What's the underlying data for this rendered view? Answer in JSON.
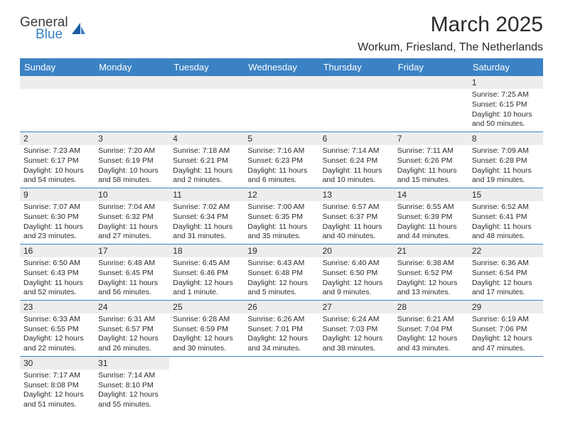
{
  "logo": {
    "text1": "General",
    "text2": "Blue",
    "shape_color": "#1e5fa3"
  },
  "title": "March 2025",
  "location": "Workum, Friesland, The Netherlands",
  "columns": [
    "Sunday",
    "Monday",
    "Tuesday",
    "Wednesday",
    "Thursday",
    "Friday",
    "Saturday"
  ],
  "header_bg": "#3b82c4",
  "header_fg": "#ffffff",
  "daynum_bg": "#ededed",
  "border_color": "#3b82c4",
  "text_color": "#2b2b2b",
  "font_family": "Arial",
  "cell_font_size_pt": 8,
  "header_font_size_pt": 10,
  "title_font_size_pt": 22,
  "weeks": [
    [
      null,
      null,
      null,
      null,
      null,
      null,
      {
        "n": "1",
        "sunrise": "7:25 AM",
        "sunset": "6:15 PM",
        "daylight": "10 hours and 50 minutes."
      }
    ],
    [
      {
        "n": "2",
        "sunrise": "7:23 AM",
        "sunset": "6:17 PM",
        "daylight": "10 hours and 54 minutes."
      },
      {
        "n": "3",
        "sunrise": "7:20 AM",
        "sunset": "6:19 PM",
        "daylight": "10 hours and 58 minutes."
      },
      {
        "n": "4",
        "sunrise": "7:18 AM",
        "sunset": "6:21 PM",
        "daylight": "11 hours and 2 minutes."
      },
      {
        "n": "5",
        "sunrise": "7:16 AM",
        "sunset": "6:23 PM",
        "daylight": "11 hours and 6 minutes."
      },
      {
        "n": "6",
        "sunrise": "7:14 AM",
        "sunset": "6:24 PM",
        "daylight": "11 hours and 10 minutes."
      },
      {
        "n": "7",
        "sunrise": "7:11 AM",
        "sunset": "6:26 PM",
        "daylight": "11 hours and 15 minutes."
      },
      {
        "n": "8",
        "sunrise": "7:09 AM",
        "sunset": "6:28 PM",
        "daylight": "11 hours and 19 minutes."
      }
    ],
    [
      {
        "n": "9",
        "sunrise": "7:07 AM",
        "sunset": "6:30 PM",
        "daylight": "11 hours and 23 minutes."
      },
      {
        "n": "10",
        "sunrise": "7:04 AM",
        "sunset": "6:32 PM",
        "daylight": "11 hours and 27 minutes."
      },
      {
        "n": "11",
        "sunrise": "7:02 AM",
        "sunset": "6:34 PM",
        "daylight": "11 hours and 31 minutes."
      },
      {
        "n": "12",
        "sunrise": "7:00 AM",
        "sunset": "6:35 PM",
        "daylight": "11 hours and 35 minutes."
      },
      {
        "n": "13",
        "sunrise": "6:57 AM",
        "sunset": "6:37 PM",
        "daylight": "11 hours and 40 minutes."
      },
      {
        "n": "14",
        "sunrise": "6:55 AM",
        "sunset": "6:39 PM",
        "daylight": "11 hours and 44 minutes."
      },
      {
        "n": "15",
        "sunrise": "6:52 AM",
        "sunset": "6:41 PM",
        "daylight": "11 hours and 48 minutes."
      }
    ],
    [
      {
        "n": "16",
        "sunrise": "6:50 AM",
        "sunset": "6:43 PM",
        "daylight": "11 hours and 52 minutes."
      },
      {
        "n": "17",
        "sunrise": "6:48 AM",
        "sunset": "6:45 PM",
        "daylight": "11 hours and 56 minutes."
      },
      {
        "n": "18",
        "sunrise": "6:45 AM",
        "sunset": "6:46 PM",
        "daylight": "12 hours and 1 minute."
      },
      {
        "n": "19",
        "sunrise": "6:43 AM",
        "sunset": "6:48 PM",
        "daylight": "12 hours and 5 minutes."
      },
      {
        "n": "20",
        "sunrise": "6:40 AM",
        "sunset": "6:50 PM",
        "daylight": "12 hours and 9 minutes."
      },
      {
        "n": "21",
        "sunrise": "6:38 AM",
        "sunset": "6:52 PM",
        "daylight": "12 hours and 13 minutes."
      },
      {
        "n": "22",
        "sunrise": "6:36 AM",
        "sunset": "6:54 PM",
        "daylight": "12 hours and 17 minutes."
      }
    ],
    [
      {
        "n": "23",
        "sunrise": "6:33 AM",
        "sunset": "6:55 PM",
        "daylight": "12 hours and 22 minutes."
      },
      {
        "n": "24",
        "sunrise": "6:31 AM",
        "sunset": "6:57 PM",
        "daylight": "12 hours and 26 minutes."
      },
      {
        "n": "25",
        "sunrise": "6:28 AM",
        "sunset": "6:59 PM",
        "daylight": "12 hours and 30 minutes."
      },
      {
        "n": "26",
        "sunrise": "6:26 AM",
        "sunset": "7:01 PM",
        "daylight": "12 hours and 34 minutes."
      },
      {
        "n": "27",
        "sunrise": "6:24 AM",
        "sunset": "7:03 PM",
        "daylight": "12 hours and 38 minutes."
      },
      {
        "n": "28",
        "sunrise": "6:21 AM",
        "sunset": "7:04 PM",
        "daylight": "12 hours and 43 minutes."
      },
      {
        "n": "29",
        "sunrise": "6:19 AM",
        "sunset": "7:06 PM",
        "daylight": "12 hours and 47 minutes."
      }
    ],
    [
      {
        "n": "30",
        "sunrise": "7:17 AM",
        "sunset": "8:08 PM",
        "daylight": "12 hours and 51 minutes."
      },
      {
        "n": "31",
        "sunrise": "7:14 AM",
        "sunset": "8:10 PM",
        "daylight": "12 hours and 55 minutes."
      },
      null,
      null,
      null,
      null,
      null
    ]
  ],
  "labels": {
    "sunrise": "Sunrise:",
    "sunset": "Sunset:",
    "daylight": "Daylight:"
  }
}
